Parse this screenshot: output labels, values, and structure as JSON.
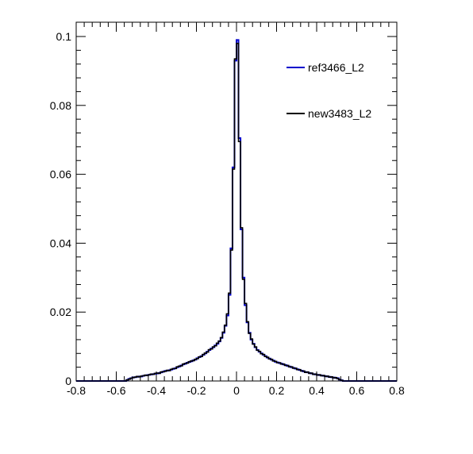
{
  "chart_data": {
    "type": "line",
    "title": "",
    "xlabel": "",
    "ylabel": "",
    "xlim": [
      -0.8,
      0.8
    ],
    "ylim": [
      0,
      0.1
    ],
    "xticks": [
      -0.8,
      -0.6,
      -0.4,
      -0.2,
      0,
      0.2,
      0.4,
      0.6,
      0.8
    ],
    "xtick_labels": [
      "-0.8",
      "-0.6",
      "-0.4",
      "-0.2",
      "0",
      "0.2",
      "0.4",
      "0.6",
      "0.8"
    ],
    "yticks": [
      0,
      0.02,
      0.04,
      0.06,
      0.08,
      0.1
    ],
    "ytick_labels": [
      "0",
      "0.02",
      "0.04",
      "0.06",
      "0.08",
      "0.1"
    ],
    "grid": false,
    "legend_position": "top-right",
    "bin_width": 0.01,
    "series": [
      {
        "name": "ref3466_L2",
        "color": "#0000cc",
        "bins": [
          [
            -0.55,
            0.0003
          ],
          [
            -0.54,
            0.0006
          ],
          [
            -0.53,
            0.0008
          ],
          [
            -0.52,
            0.001
          ],
          [
            -0.51,
            0.0011
          ],
          [
            -0.5,
            0.0012
          ],
          [
            -0.49,
            0.0013
          ],
          [
            -0.48,
            0.0013
          ],
          [
            -0.47,
            0.0015
          ],
          [
            -0.46,
            0.0016
          ],
          [
            -0.45,
            0.0017
          ],
          [
            -0.44,
            0.0018
          ],
          [
            -0.43,
            0.0019
          ],
          [
            -0.42,
            0.002
          ],
          [
            -0.41,
            0.0021
          ],
          [
            -0.4,
            0.0022
          ],
          [
            -0.39,
            0.0023
          ],
          [
            -0.38,
            0.0025
          ],
          [
            -0.37,
            0.0027
          ],
          [
            -0.36,
            0.0029
          ],
          [
            -0.35,
            0.003
          ],
          [
            -0.34,
            0.0031
          ],
          [
            -0.33,
            0.0033
          ],
          [
            -0.32,
            0.0035
          ],
          [
            -0.31,
            0.0037
          ],
          [
            -0.3,
            0.004
          ],
          [
            -0.29,
            0.0042
          ],
          [
            -0.28,
            0.0045
          ],
          [
            -0.27,
            0.0048
          ],
          [
            -0.26,
            0.005
          ],
          [
            -0.25,
            0.0053
          ],
          [
            -0.24,
            0.0055
          ],
          [
            -0.23,
            0.0057
          ],
          [
            -0.22,
            0.006
          ],
          [
            -0.21,
            0.0062
          ],
          [
            -0.2,
            0.0066
          ],
          [
            -0.19,
            0.0069
          ],
          [
            -0.18,
            0.0072
          ],
          [
            -0.17,
            0.0076
          ],
          [
            -0.16,
            0.008
          ],
          [
            -0.15,
            0.0085
          ],
          [
            -0.14,
            0.009
          ],
          [
            -0.13,
            0.0094
          ],
          [
            -0.12,
            0.0098
          ],
          [
            -0.11,
            0.0103
          ],
          [
            -0.1,
            0.0108
          ],
          [
            -0.09,
            0.0115
          ],
          [
            -0.08,
            0.0125
          ],
          [
            -0.07,
            0.014
          ],
          [
            -0.06,
            0.016
          ],
          [
            -0.05,
            0.019
          ],
          [
            -0.04,
            0.025
          ],
          [
            -0.03,
            0.0385
          ],
          [
            -0.02,
            0.062
          ],
          [
            -0.01,
            0.093
          ],
          [
            0.0,
            0.099
          ],
          [
            0.01,
            0.0705
          ],
          [
            0.02,
            0.044
          ],
          [
            0.03,
            0.03
          ],
          [
            0.04,
            0.022
          ],
          [
            0.05,
            0.017
          ],
          [
            0.06,
            0.014
          ],
          [
            0.07,
            0.012
          ],
          [
            0.08,
            0.0108
          ],
          [
            0.09,
            0.0098
          ],
          [
            0.1,
            0.009
          ],
          [
            0.11,
            0.0085
          ],
          [
            0.12,
            0.008
          ],
          [
            0.13,
            0.0076
          ],
          [
            0.14,
            0.0072
          ],
          [
            0.15,
            0.0068
          ],
          [
            0.16,
            0.0065
          ],
          [
            0.17,
            0.0062
          ],
          [
            0.18,
            0.0059
          ],
          [
            0.19,
            0.0056
          ],
          [
            0.2,
            0.0054
          ],
          [
            0.21,
            0.0052
          ],
          [
            0.22,
            0.005
          ],
          [
            0.23,
            0.0048
          ],
          [
            0.24,
            0.0046
          ],
          [
            0.25,
            0.0044
          ],
          [
            0.26,
            0.0042
          ],
          [
            0.27,
            0.004
          ],
          [
            0.28,
            0.0038
          ],
          [
            0.29,
            0.0036
          ],
          [
            0.3,
            0.0034
          ],
          [
            0.31,
            0.0032
          ],
          [
            0.32,
            0.003
          ],
          [
            0.33,
            0.0028
          ],
          [
            0.34,
            0.0026
          ],
          [
            0.35,
            0.0025
          ],
          [
            0.36,
            0.0023
          ],
          [
            0.37,
            0.0022
          ],
          [
            0.38,
            0.002
          ],
          [
            0.39,
            0.0019
          ],
          [
            0.4,
            0.0018
          ],
          [
            0.41,
            0.0017
          ],
          [
            0.42,
            0.0016
          ],
          [
            0.43,
            0.0015
          ],
          [
            0.44,
            0.0014
          ],
          [
            0.45,
            0.0013
          ],
          [
            0.46,
            0.0012
          ],
          [
            0.47,
            0.0011
          ],
          [
            0.48,
            0.001
          ],
          [
            0.49,
            0.0009
          ],
          [
            0.5,
            0.0008
          ],
          [
            0.51,
            0.0004
          ],
          [
            0.52,
            0.0002
          ]
        ]
      },
      {
        "name": "new3483_L2",
        "color": "#000000",
        "bins": [
          [
            -0.55,
            0.0003
          ],
          [
            -0.54,
            0.0005
          ],
          [
            -0.53,
            0.0008
          ],
          [
            -0.52,
            0.001
          ],
          [
            -0.51,
            0.0011
          ],
          [
            -0.5,
            0.0013
          ],
          [
            -0.49,
            0.0012
          ],
          [
            -0.48,
            0.0014
          ],
          [
            -0.47,
            0.0015
          ],
          [
            -0.46,
            0.0017
          ],
          [
            -0.45,
            0.0016
          ],
          [
            -0.44,
            0.0018
          ],
          [
            -0.43,
            0.002
          ],
          [
            -0.42,
            0.0019
          ],
          [
            -0.41,
            0.0022
          ],
          [
            -0.4,
            0.0023
          ],
          [
            -0.39,
            0.0022
          ],
          [
            -0.38,
            0.0026
          ],
          [
            -0.37,
            0.0027
          ],
          [
            -0.36,
            0.0028
          ],
          [
            -0.35,
            0.0031
          ],
          [
            -0.34,
            0.003
          ],
          [
            -0.33,
            0.0034
          ],
          [
            -0.32,
            0.0036
          ],
          [
            -0.31,
            0.0036
          ],
          [
            -0.3,
            0.0041
          ],
          [
            -0.29,
            0.0043
          ],
          [
            -0.28,
            0.0044
          ],
          [
            -0.27,
            0.0049
          ],
          [
            -0.26,
            0.0051
          ],
          [
            -0.25,
            0.0052
          ],
          [
            -0.24,
            0.0056
          ],
          [
            -0.23,
            0.0058
          ],
          [
            -0.22,
            0.0059
          ],
          [
            -0.21,
            0.0063
          ],
          [
            -0.2,
            0.0065
          ],
          [
            -0.19,
            0.007
          ],
          [
            -0.18,
            0.0071
          ],
          [
            -0.17,
            0.0077
          ],
          [
            -0.16,
            0.0081
          ],
          [
            -0.15,
            0.0084
          ],
          [
            -0.14,
            0.0091
          ],
          [
            -0.13,
            0.0093
          ],
          [
            -0.12,
            0.0099
          ],
          [
            -0.11,
            0.0102
          ],
          [
            -0.1,
            0.011
          ],
          [
            -0.09,
            0.0116
          ],
          [
            -0.08,
            0.0126
          ],
          [
            -0.07,
            0.0142
          ],
          [
            -0.06,
            0.0162
          ],
          [
            -0.05,
            0.0195
          ],
          [
            -0.04,
            0.0255
          ],
          [
            -0.03,
            0.038
          ],
          [
            -0.02,
            0.0615
          ],
          [
            -0.01,
            0.0935
          ],
          [
            0.0,
            0.098
          ],
          [
            0.01,
            0.0695
          ],
          [
            0.02,
            0.0445
          ],
          [
            0.03,
            0.0295
          ],
          [
            0.04,
            0.0225
          ],
          [
            0.05,
            0.0172
          ],
          [
            0.06,
            0.0138
          ],
          [
            0.07,
            0.0122
          ],
          [
            0.08,
            0.0107
          ],
          [
            0.09,
            0.0099
          ],
          [
            0.1,
            0.0089
          ],
          [
            0.11,
            0.0086
          ],
          [
            0.12,
            0.0079
          ],
          [
            0.13,
            0.0077
          ],
          [
            0.14,
            0.0071
          ],
          [
            0.15,
            0.0069
          ],
          [
            0.16,
            0.0064
          ],
          [
            0.17,
            0.0063
          ],
          [
            0.18,
            0.0058
          ],
          [
            0.19,
            0.0057
          ],
          [
            0.2,
            0.0053
          ],
          [
            0.21,
            0.0053
          ],
          [
            0.22,
            0.0049
          ],
          [
            0.23,
            0.0049
          ],
          [
            0.24,
            0.0045
          ],
          [
            0.25,
            0.0045
          ],
          [
            0.26,
            0.0041
          ],
          [
            0.27,
            0.0041
          ],
          [
            0.28,
            0.0037
          ],
          [
            0.29,
            0.0037
          ],
          [
            0.3,
            0.0033
          ],
          [
            0.31,
            0.0033
          ],
          [
            0.32,
            0.0029
          ],
          [
            0.33,
            0.0029
          ],
          [
            0.34,
            0.0025
          ],
          [
            0.35,
            0.0026
          ],
          [
            0.36,
            0.0022
          ],
          [
            0.37,
            0.0023
          ],
          [
            0.38,
            0.0019
          ],
          [
            0.39,
            0.002
          ],
          [
            0.4,
            0.0017
          ],
          [
            0.41,
            0.0018
          ],
          [
            0.42,
            0.0015
          ],
          [
            0.43,
            0.0016
          ],
          [
            0.44,
            0.0013
          ],
          [
            0.45,
            0.0014
          ],
          [
            0.46,
            0.0011
          ],
          [
            0.47,
            0.0012
          ],
          [
            0.48,
            0.0009
          ],
          [
            0.49,
            0.001
          ],
          [
            0.5,
            0.0007
          ],
          [
            0.51,
            0.0004
          ],
          [
            0.52,
            0.0002
          ]
        ]
      }
    ]
  }
}
